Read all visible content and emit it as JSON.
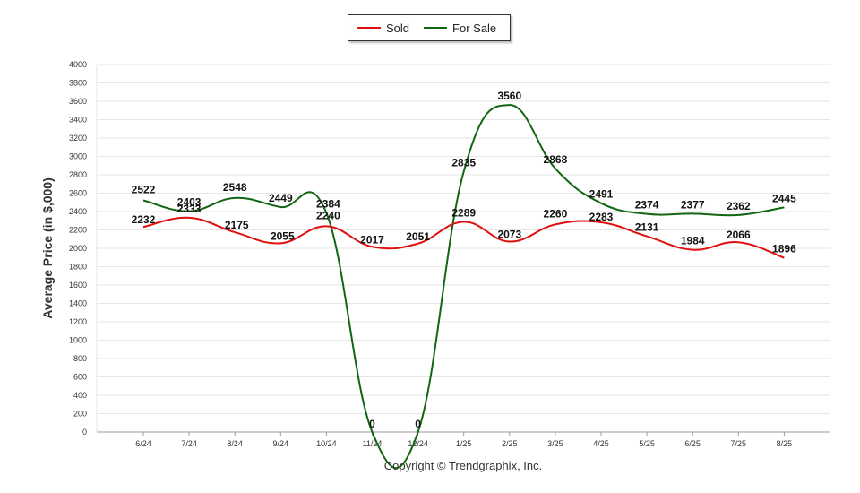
{
  "chart_data": {
    "type": "line",
    "ylabel": "Average Price  (in $,000)",
    "ylim": [
      0,
      4000
    ],
    "y_ticks": [
      0,
      200,
      400,
      600,
      800,
      1000,
      1200,
      1400,
      1600,
      1800,
      2000,
      2200,
      2400,
      2600,
      2800,
      3000,
      3200,
      3400,
      3600,
      3800,
      4000
    ],
    "categories": [
      "6/24",
      "7/24",
      "8/24",
      "9/24",
      "10/24",
      "11/24",
      "12/24",
      "1/25",
      "2/25",
      "3/25",
      "4/25",
      "5/25",
      "6/25",
      "7/25",
      "8/25"
    ],
    "series": [
      {
        "name": "Sold",
        "color": "#e01010",
        "values": [
          2232,
          2333,
          2175,
          2055,
          2240,
          2017,
          2051,
          2289,
          2073,
          2260,
          2283,
          2131,
          1984,
          2066,
          1896
        ]
      },
      {
        "name": "For Sale",
        "color": "#116611",
        "values": [
          2522,
          2403,
          2548,
          2449,
          2384,
          0,
          0,
          2835,
          3560,
          2868,
          2491,
          2374,
          2377,
          2362,
          2445
        ]
      }
    ],
    "legend_position": "top-center",
    "grid": true
  },
  "legend": {
    "sold_label": "Sold",
    "forsale_label": "For Sale"
  },
  "footer": {
    "copyright": "Copyright © Trendgraphix, Inc."
  }
}
